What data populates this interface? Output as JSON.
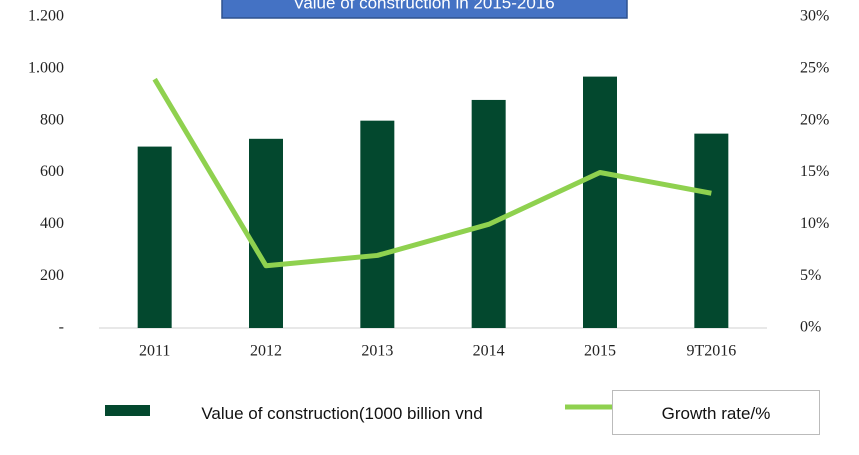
{
  "chart_data": {
    "type": "bar-line",
    "title": "Value of construction in 2015-2016",
    "categories": [
      "2011",
      "2012",
      "2013",
      "2014",
      "2015",
      "9T2016"
    ],
    "series": [
      {
        "name": "Value of construction(1000 billion vnd",
        "type": "bar",
        "color": "#03482e",
        "values": [
          700,
          730,
          800,
          880,
          970,
          750
        ]
      },
      {
        "name": "Growth rate/%",
        "type": "line",
        "axis": "y2",
        "color": "#8fd14f",
        "values": [
          24,
          6,
          7,
          10,
          15,
          13
        ]
      }
    ],
    "ylim": [
      0,
      1200
    ],
    "yticks": [
      {
        "value": 0,
        "label": "-"
      },
      200,
      400,
      600,
      800,
      {
        "value": 1000,
        "label": "1.000"
      },
      {
        "value": 1200,
        "label": "1.200"
      }
    ],
    "y2lim": [
      0,
      30
    ],
    "y2ticks": [
      {
        "value": 0,
        "label": "0%"
      },
      {
        "value": 5,
        "label": "5%"
      },
      {
        "value": 10,
        "label": "10%"
      },
      {
        "value": 15,
        "label": "15%"
      },
      {
        "value": 20,
        "label": "20%"
      },
      {
        "value": 25,
        "label": "25%"
      },
      {
        "value": 30,
        "label": "30%"
      }
    ],
    "grid": false,
    "legend": "bottom"
  }
}
